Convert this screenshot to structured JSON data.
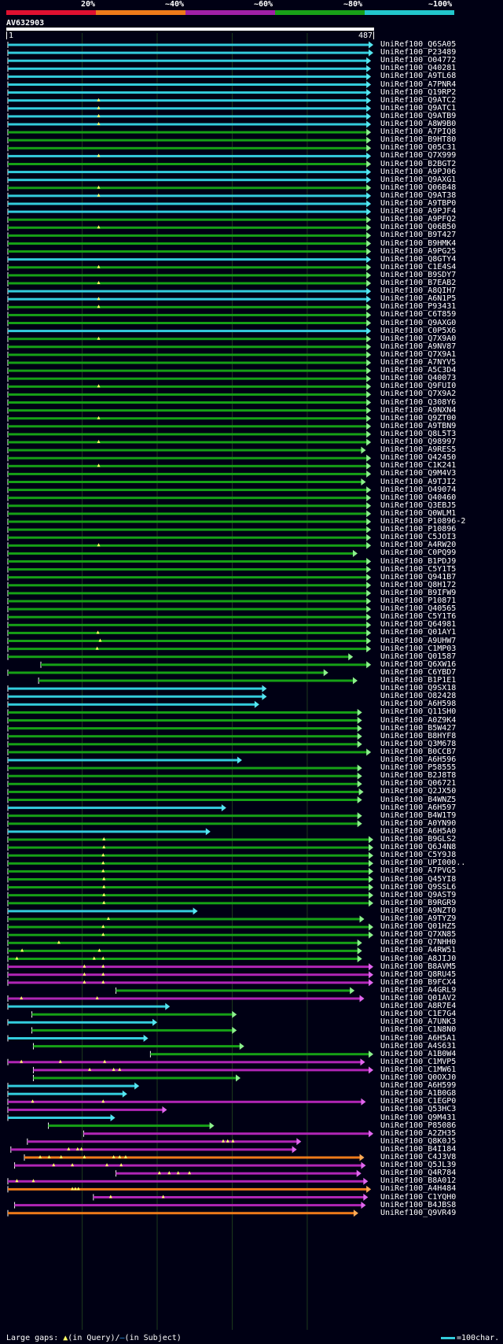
{
  "legend": {
    "labels": [
      "20%",
      "~40%",
      "~60%",
      "~80%",
      "~100%"
    ],
    "colors": [
      "#e01030",
      "#ee7a1a",
      "#a020a8",
      "#18a018",
      "#22c6cc"
    ]
  },
  "query": {
    "id": "AV632903",
    "start": "1",
    "end": "487",
    "length": 487
  },
  "hits": [
    {
      "id": "UniRef100_Q6SA05",
      "color": "cyan",
      "s": 1,
      "e": 487,
      "tris": []
    },
    {
      "id": "UniRef100_P23489",
      "color": "cyan",
      "s": 1,
      "e": 487,
      "tris": []
    },
    {
      "id": "UniRef100_O04772",
      "color": "cyan",
      "s": 1,
      "e": 484,
      "tris": []
    },
    {
      "id": "UniRef100_Q40281",
      "color": "cyan",
      "s": 1,
      "e": 484,
      "tris": []
    },
    {
      "id": "UniRef100_A9TL68",
      "color": "cyan",
      "s": 1,
      "e": 484,
      "tris": []
    },
    {
      "id": "UniRef100_A7PNR4",
      "color": "cyan",
      "s": 1,
      "e": 484,
      "tris": []
    },
    {
      "id": "UniRef100_Q19RP2",
      "color": "cyan",
      "s": 1,
      "e": 484,
      "tris": []
    },
    {
      "id": "UniRef100_Q9ATC2",
      "color": "cyan",
      "s": 1,
      "e": 484,
      "tris": [
        122
      ]
    },
    {
      "id": "UniRef100_Q9ATC1",
      "color": "cyan",
      "s": 1,
      "e": 484,
      "tris": [
        122
      ]
    },
    {
      "id": "UniRef100_Q9ATB9",
      "color": "cyan",
      "s": 1,
      "e": 484,
      "tris": [
        122
      ]
    },
    {
      "id": "UniRef100_A8W9B0",
      "color": "cyan",
      "s": 1,
      "e": 484,
      "tris": [
        122
      ]
    },
    {
      "id": "UniRef100_A7PIQ8",
      "color": "green",
      "s": 1,
      "e": 484,
      "tris": []
    },
    {
      "id": "UniRef100_B9HT80",
      "color": "green",
      "s": 1,
      "e": 484,
      "tris": []
    },
    {
      "id": "UniRef100_Q05C31",
      "color": "green",
      "s": 1,
      "e": 484,
      "tris": []
    },
    {
      "id": "UniRef100_Q7X999",
      "color": "cyan",
      "s": 1,
      "e": 484,
      "tris": [
        122
      ]
    },
    {
      "id": "UniRef100_B2BGT2",
      "color": "green",
      "s": 1,
      "e": 484,
      "tris": []
    },
    {
      "id": "UniRef100_A9PJ06",
      "color": "cyan",
      "s": 1,
      "e": 484,
      "tris": []
    },
    {
      "id": "UniRef100_Q9AXG1",
      "color": "cyan",
      "s": 1,
      "e": 484,
      "tris": []
    },
    {
      "id": "UniRef100_Q06B48",
      "color": "green",
      "s": 1,
      "e": 484,
      "tris": [
        122
      ]
    },
    {
      "id": "UniRef100_Q9AT38",
      "color": "cyan",
      "s": 1,
      "e": 484,
      "tris": [
        122
      ]
    },
    {
      "id": "UniRef100_A9TBP0",
      "color": "cyan",
      "s": 1,
      "e": 484,
      "tris": []
    },
    {
      "id": "UniRef100_A9PJF4",
      "color": "cyan",
      "s": 1,
      "e": 484,
      "tris": []
    },
    {
      "id": "UniRef100_A9PFQ2",
      "color": "green",
      "s": 1,
      "e": 484,
      "tris": []
    },
    {
      "id": "UniRef100_Q06B50",
      "color": "green",
      "s": 1,
      "e": 484,
      "tris": [
        122
      ]
    },
    {
      "id": "UniRef100_B9T427",
      "color": "green",
      "s": 1,
      "e": 484,
      "tris": []
    },
    {
      "id": "UniRef100_B9HMK4",
      "color": "green",
      "s": 1,
      "e": 484,
      "tris": []
    },
    {
      "id": "UniRef100_A9PG25",
      "color": "green",
      "s": 1,
      "e": 484,
      "tris": []
    },
    {
      "id": "UniRef100_Q8GTY4",
      "color": "cyan",
      "s": 1,
      "e": 484,
      "tris": []
    },
    {
      "id": "UniRef100_C1E4S4",
      "color": "green",
      "s": 1,
      "e": 484,
      "tris": [
        122
      ]
    },
    {
      "id": "UniRef100_B9SDY7",
      "color": "green",
      "s": 1,
      "e": 484,
      "tris": []
    },
    {
      "id": "UniRef100_B7EAB2",
      "color": "green",
      "s": 1,
      "e": 484,
      "tris": [
        122
      ]
    },
    {
      "id": "UniRef100_A8QIH7",
      "color": "cyan",
      "s": 1,
      "e": 484,
      "tris": []
    },
    {
      "id": "UniRef100_A6N1P5",
      "color": "cyan",
      "s": 1,
      "e": 484,
      "tris": [
        122
      ]
    },
    {
      "id": "UniRef100_P93431",
      "color": "green",
      "s": 1,
      "e": 484,
      "tris": [
        122
      ]
    },
    {
      "id": "UniRef100_C6T859",
      "color": "green",
      "s": 1,
      "e": 484,
      "tris": []
    },
    {
      "id": "UniRef100_Q9AXG0",
      "color": "green",
      "s": 1,
      "e": 484,
      "tris": []
    },
    {
      "id": "UniRef100_C0P5X6",
      "color": "cyan",
      "s": 1,
      "e": 484,
      "tris": []
    },
    {
      "id": "UniRef100_Q7X9A0",
      "color": "green",
      "s": 1,
      "e": 484,
      "tris": [
        122
      ]
    },
    {
      "id": "UniRef100_A9NV87",
      "color": "green",
      "s": 1,
      "e": 484,
      "tris": []
    },
    {
      "id": "UniRef100_Q7X9A1",
      "color": "green",
      "s": 1,
      "e": 484,
      "tris": []
    },
    {
      "id": "UniRef100_A7NYV5",
      "color": "green",
      "s": 1,
      "e": 484,
      "tris": []
    },
    {
      "id": "UniRef100_A5C3D4",
      "color": "green",
      "s": 1,
      "e": 484,
      "tris": []
    },
    {
      "id": "UniRef100_Q40073",
      "color": "green",
      "s": 1,
      "e": 484,
      "tris": []
    },
    {
      "id": "UniRef100_Q9FUI0",
      "color": "green",
      "s": 1,
      "e": 484,
      "tris": [
        122
      ]
    },
    {
      "id": "UniRef100_Q7X9A2",
      "color": "green",
      "s": 1,
      "e": 484,
      "tris": []
    },
    {
      "id": "UniRef100_Q308Y6",
      "color": "green",
      "s": 1,
      "e": 484,
      "tris": []
    },
    {
      "id": "UniRef100_A9NXN4",
      "color": "green",
      "s": 1,
      "e": 484,
      "tris": []
    },
    {
      "id": "UniRef100_Q9ZT00",
      "color": "green",
      "s": 1,
      "e": 484,
      "tris": [
        122
      ]
    },
    {
      "id": "UniRef100_A9TBN9",
      "color": "green",
      "s": 1,
      "e": 484,
      "tris": []
    },
    {
      "id": "UniRef100_Q8L5T3",
      "color": "green",
      "s": 1,
      "e": 484,
      "tris": []
    },
    {
      "id": "UniRef100_Q98997",
      "color": "green",
      "s": 1,
      "e": 484,
      "tris": [
        122
      ]
    },
    {
      "id": "UniRef100_A9RES5",
      "color": "green",
      "s": 1,
      "e": 477,
      "tris": []
    },
    {
      "id": "UniRef100_Q42450",
      "color": "green",
      "s": 1,
      "e": 484,
      "tris": []
    },
    {
      "id": "UniRef100_C1K241",
      "color": "green",
      "s": 1,
      "e": 484,
      "tris": [
        122
      ]
    },
    {
      "id": "UniRef100_Q9M4V3",
      "color": "green",
      "s": 1,
      "e": 484,
      "tris": []
    },
    {
      "id": "UniRef100_A9TJI2",
      "color": "green",
      "s": 1,
      "e": 477,
      "tris": []
    },
    {
      "id": "UniRef100_O49074",
      "color": "green",
      "s": 1,
      "e": 484,
      "tris": []
    },
    {
      "id": "UniRef100_Q40460",
      "color": "green",
      "s": 1,
      "e": 484,
      "tris": []
    },
    {
      "id": "UniRef100_Q3EBJ5",
      "color": "green",
      "s": 1,
      "e": 484,
      "tris": []
    },
    {
      "id": "UniRef100_Q0WLM1",
      "color": "green",
      "s": 1,
      "e": 484,
      "tris": []
    },
    {
      "id": "UniRef100_P10896-2",
      "color": "green",
      "s": 1,
      "e": 484,
      "tris": []
    },
    {
      "id": "UniRef100_P10896",
      "color": "green",
      "s": 1,
      "e": 484,
      "tris": []
    },
    {
      "id": "UniRef100_C5JOI3",
      "color": "green",
      "s": 1,
      "e": 484,
      "tris": []
    },
    {
      "id": "UniRef100_A4RW20",
      "color": "green",
      "s": 1,
      "e": 484,
      "tris": [
        122
      ]
    },
    {
      "id": "UniRef100_C0PQ99",
      "color": "green",
      "s": 1,
      "e": 466,
      "tris": []
    },
    {
      "id": "UniRef100_B1PDJ9",
      "color": "green",
      "s": 1,
      "e": 484,
      "tris": []
    },
    {
      "id": "UniRef100_C5Y1T5",
      "color": "green",
      "s": 1,
      "e": 484,
      "tris": []
    },
    {
      "id": "UniRef100_Q941B7",
      "color": "green",
      "s": 1,
      "e": 484,
      "tris": []
    },
    {
      "id": "UniRef100_Q8H172",
      "color": "green",
      "s": 1,
      "e": 484,
      "tris": []
    },
    {
      "id": "UniRef100_B9IFW9",
      "color": "green",
      "s": 1,
      "e": 484,
      "tris": []
    },
    {
      "id": "UniRef100_P10871",
      "color": "green",
      "s": 1,
      "e": 484,
      "tris": []
    },
    {
      "id": "UniRef100_Q40565",
      "color": "green",
      "s": 1,
      "e": 484,
      "tris": []
    },
    {
      "id": "UniRef100_C5Y1T6",
      "color": "green",
      "s": 1,
      "e": 484,
      "tris": []
    },
    {
      "id": "UniRef100_Q64981",
      "color": "green",
      "s": 1,
      "e": 484,
      "tris": []
    },
    {
      "id": "UniRef100_Q01AY1",
      "color": "green",
      "s": 1,
      "e": 484,
      "tris": [
        121
      ]
    },
    {
      "id": "UniRef100_A9UHW7",
      "color": "green",
      "s": 1,
      "e": 484,
      "tris": [
        124
      ]
    },
    {
      "id": "UniRef100_C1MP03",
      "color": "green",
      "s": 1,
      "e": 484,
      "tris": [
        120
      ]
    },
    {
      "id": "UniRef100_Q01587",
      "color": "green",
      "s": 1,
      "e": 460,
      "tris": []
    },
    {
      "id": "UniRef100_Q6XW16",
      "color": "green",
      "s": 45,
      "e": 484,
      "tris": []
    },
    {
      "id": "UniRef100_C6YBD7",
      "color": "green",
      "s": 1,
      "e": 427,
      "tris": []
    },
    {
      "id": "UniRef100_B1P1E1",
      "color": "green",
      "s": 42,
      "e": 466,
      "tris": []
    },
    {
      "id": "UniRef100_Q9SX18",
      "color": "cyan",
      "s": 1,
      "e": 345,
      "tris": []
    },
    {
      "id": "UniRef100_O82428",
      "color": "cyan",
      "s": 1,
      "e": 345,
      "tris": []
    },
    {
      "id": "UniRef100_A6H598",
      "color": "cyan",
      "s": 1,
      "e": 335,
      "tris": []
    },
    {
      "id": "UniRef100_Q11SH0",
      "color": "green",
      "s": 1,
      "e": 472,
      "tris": []
    },
    {
      "id": "UniRef100_A0Z9K4",
      "color": "green",
      "s": 1,
      "e": 472,
      "tris": []
    },
    {
      "id": "UniRef100_B5W427",
      "color": "green",
      "s": 1,
      "e": 472,
      "tris": []
    },
    {
      "id": "UniRef100_B8HYF8",
      "color": "green",
      "s": 1,
      "e": 472,
      "tris": []
    },
    {
      "id": "UniRef100_Q3M678",
      "color": "green",
      "s": 1,
      "e": 472,
      "tris": []
    },
    {
      "id": "UniRef100_B0CCB7",
      "color": "green",
      "s": 1,
      "e": 484,
      "tris": []
    },
    {
      "id": "UniRef100_A6H596",
      "color": "cyan",
      "s": 1,
      "e": 312,
      "tris": []
    },
    {
      "id": "UniRef100_P58555",
      "color": "green",
      "s": 1,
      "e": 472,
      "tris": []
    },
    {
      "id": "UniRef100_B2J8T8",
      "color": "green",
      "s": 1,
      "e": 472,
      "tris": []
    },
    {
      "id": "UniRef100_Q06721",
      "color": "green",
      "s": 1,
      "e": 472,
      "tris": []
    },
    {
      "id": "UniRef100_Q2JX50",
      "color": "green",
      "s": 1,
      "e": 474,
      "tris": []
    },
    {
      "id": "UniRef100_B4WNZ5",
      "color": "green",
      "s": 1,
      "e": 472,
      "tris": []
    },
    {
      "id": "UniRef100_A6H597",
      "color": "cyan",
      "s": 1,
      "e": 291,
      "tris": []
    },
    {
      "id": "UniRef100_B4W1T9",
      "color": "green",
      "s": 1,
      "e": 472,
      "tris": []
    },
    {
      "id": "UniRef100_A0YN90",
      "color": "green",
      "s": 1,
      "e": 472,
      "tris": []
    },
    {
      "id": "UniRef100_A6H5A0",
      "color": "cyan",
      "s": 1,
      "e": 270,
      "tris": []
    },
    {
      "id": "UniRef100_B9GLS2",
      "color": "green",
      "s": 1,
      "e": 487,
      "tris": [
        129
      ]
    },
    {
      "id": "UniRef100_Q6J4N8",
      "color": "green",
      "s": 1,
      "e": 487,
      "tris": [
        129
      ]
    },
    {
      "id": "UniRef100_C5Y9J8",
      "color": "green",
      "s": 1,
      "e": 487,
      "tris": [
        128
      ]
    },
    {
      "id": "UniRef100_UPI000..",
      "color": "green",
      "s": 1,
      "e": 487,
      "tris": [
        128
      ]
    },
    {
      "id": "UniRef100_A7PVG5",
      "color": "green",
      "s": 1,
      "e": 487,
      "tris": [
        128
      ]
    },
    {
      "id": "UniRef100_Q45YI8",
      "color": "green",
      "s": 1,
      "e": 487,
      "tris": [
        129
      ]
    },
    {
      "id": "UniRef100_Q9SSL6",
      "color": "green",
      "s": 1,
      "e": 487,
      "tris": [
        129
      ]
    },
    {
      "id": "UniRef100_Q9AST9",
      "color": "green",
      "s": 1,
      "e": 487,
      "tris": [
        129
      ]
    },
    {
      "id": "UniRef100_B9RGR9",
      "color": "green",
      "s": 1,
      "e": 487,
      "tris": [
        129
      ]
    },
    {
      "id": "UniRef100_A9NZT0",
      "color": "cyan",
      "s": 1,
      "e": 253,
      "tris": []
    },
    {
      "id": "UniRef100_A9TYZ9",
      "color": "green",
      "s": 1,
      "e": 475,
      "tris": [
        135
      ]
    },
    {
      "id": "UniRef100_Q01HZ5",
      "color": "green",
      "s": 1,
      "e": 487,
      "tris": [
        128
      ]
    },
    {
      "id": "UniRef100_Q7XN85",
      "color": "green",
      "s": 1,
      "e": 487,
      "tris": [
        128
      ]
    },
    {
      "id": "UniRef100_Q7NHH0",
      "color": "green",
      "s": 1,
      "e": 472,
      "tris": [
        69
      ]
    },
    {
      "id": "UniRef100_A4RW51",
      "color": "green",
      "s": 1,
      "e": 472,
      "tris": [
        20,
        123
      ]
    },
    {
      "id": "UniRef100_A8JIJ0",
      "color": "green",
      "s": 1,
      "e": 472,
      "tris": [
        13,
        116,
        128
      ]
    },
    {
      "id": "UniRef100_B8AVM5",
      "color": "purple",
      "s": 1,
      "e": 487,
      "tris": [
        103,
        128
      ]
    },
    {
      "id": "UniRef100_Q8RU45",
      "color": "purple",
      "s": 1,
      "e": 487,
      "tris": [
        103,
        128
      ]
    },
    {
      "id": "UniRef100_B9FCX4",
      "color": "purple",
      "s": 1,
      "e": 487,
      "tris": [
        103,
        128
      ]
    },
    {
      "id": "UniRef100_A4GRL9",
      "color": "green",
      "s": 145,
      "e": 462,
      "tris": []
    },
    {
      "id": "UniRef100_Q01AV2",
      "color": "purple",
      "s": 1,
      "e": 475,
      "tris": [
        19,
        120
      ]
    },
    {
      "id": "UniRef100_A8R7E4",
      "color": "cyan",
      "s": 1,
      "e": 216,
      "tris": []
    },
    {
      "id": "UniRef100_C1E7G4",
      "color": "green",
      "s": 33,
      "e": 305,
      "tris": []
    },
    {
      "id": "UniRef100_A7UNK3",
      "color": "cyan",
      "s": 1,
      "e": 199,
      "tris": []
    },
    {
      "id": "UniRef100_C1N8N0",
      "color": "green",
      "s": 33,
      "e": 305,
      "tris": []
    },
    {
      "id": "UniRef100_A6H5A1",
      "color": "cyan",
      "s": 1,
      "e": 187,
      "tris": []
    },
    {
      "id": "UniRef100_A4S631",
      "color": "green",
      "s": 35,
      "e": 315,
      "tris": []
    },
    {
      "id": "UniRef100_A1B0W4",
      "color": "green",
      "s": 191,
      "e": 487,
      "tris": []
    },
    {
      "id": "UniRef100_C1MVP5",
      "color": "purple",
      "s": 1,
      "e": 476,
      "tris": [
        19,
        71,
        130
      ]
    },
    {
      "id": "UniRef100_C1MW61",
      "color": "purple",
      "s": 35,
      "e": 487,
      "tris": [
        110,
        142,
        150
      ]
    },
    {
      "id": "UniRef100_Q0OXJ0",
      "color": "green",
      "s": 35,
      "e": 310,
      "tris": []
    },
    {
      "id": "UniRef100_A6H599",
      "color": "cyan",
      "s": 1,
      "e": 175,
      "tris": []
    },
    {
      "id": "UniRef100_A1B0G8",
      "color": "cyan",
      "s": 1,
      "e": 159,
      "tris": []
    },
    {
      "id": "UniRef100_C1EGP0",
      "color": "purple",
      "s": 1,
      "e": 477,
      "tris": [
        128,
        34
      ]
    },
    {
      "id": "UniRef100_Q53HC3",
      "color": "purple",
      "s": 1,
      "e": 212,
      "tris": []
    },
    {
      "id": "UniRef100_Q9M431",
      "color": "cyan",
      "s": 1,
      "e": 143,
      "tris": []
    },
    {
      "id": "UniRef100_P85086",
      "color": "green",
      "s": 55,
      "e": 275,
      "tris": []
    },
    {
      "id": "UniRef100_A2ZH35",
      "color": "purple",
      "s": 102,
      "e": 487,
      "tris": []
    },
    {
      "id": "UniRef100_Q8K0J5",
      "color": "purple",
      "s": 27,
      "e": 391,
      "tris": [
        288,
        294,
        301
      ]
    },
    {
      "id": "UniRef100_B4I184",
      "color": "purple",
      "s": 5,
      "e": 385,
      "tris": [
        94,
        82,
        99
      ]
    },
    {
      "id": "UniRef100_C4J3V8",
      "color": "orange",
      "s": 23,
      "e": 475,
      "tris": [
        44,
        56,
        72,
        103,
        142,
        150,
        158
      ]
    },
    {
      "id": "UniRef100_Q5JL39",
      "color": "purple",
      "s": 10,
      "e": 477,
      "tris": [
        62,
        87,
        133,
        152
      ]
    },
    {
      "id": "UniRef100_Q4R784",
      "color": "purple",
      "s": 145,
      "e": 471,
      "tris": [
        203,
        216,
        228,
        243
      ]
    },
    {
      "id": "UniRef100_B8A012",
      "color": "purple",
      "s": 1,
      "e": 480,
      "tris": [
        13,
        35
      ]
    },
    {
      "id": "UniRef100_A4H484",
      "color": "orange",
      "s": 1,
      "e": 484,
      "tris": [
        87,
        91,
        95
      ]
    },
    {
      "id": "UniRef100_C1YQH0",
      "color": "purple",
      "s": 115,
      "e": 480,
      "tris": [
        208,
        138
      ]
    },
    {
      "id": "UniRef100_B4JBS8",
      "color": "purple",
      "s": 10,
      "e": 477,
      "tris": []
    },
    {
      "id": "UniRef100_Q9VR49",
      "color": "orange",
      "s": 1,
      "e": 467,
      "tris": []
    }
  ],
  "footer": {
    "prefix": "Large gaps: ",
    "tri": "▲",
    "in_query": "(in Query)/",
    "dash": "—",
    "in_subject": "(in Subject)"
  },
  "scale": {
    "label": "=100char."
  }
}
